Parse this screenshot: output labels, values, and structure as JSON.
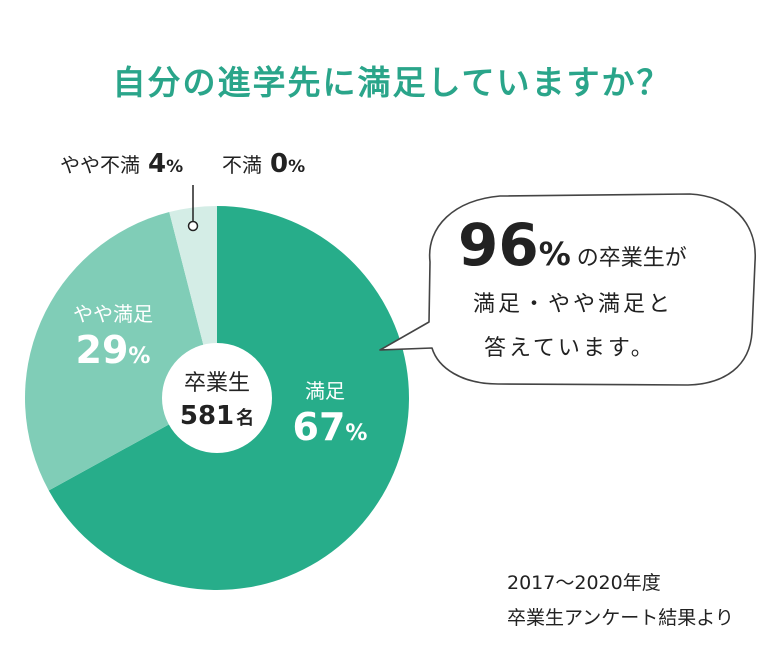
{
  "title": "自分の進学先に満足していますか？",
  "colors": {
    "title": "#2aa58a",
    "satisfied": "#27ad8a",
    "somewhat_satisfied": "#80cdb7",
    "somewhat_unsatisfied": "#d4ede6",
    "unsatisfied": "#ffffff",
    "text_dark": "#222222"
  },
  "chart_data": {
    "type": "pie",
    "title": "自分の進学先に満足していますか？",
    "slices": [
      {
        "label": "満足",
        "value": 67,
        "value_text": "67",
        "unit": "%"
      },
      {
        "label": "やや満足",
        "value": 29,
        "value_text": "29",
        "unit": "%"
      },
      {
        "label": "やや不満",
        "value": 4,
        "value_text": "4",
        "unit": "%"
      },
      {
        "label": "不満",
        "value": 0,
        "value_text": "0",
        "unit": "%"
      }
    ],
    "center": {
      "label": "卒業生",
      "count": "581",
      "unit": "名"
    }
  },
  "callout": {
    "big_number": "96",
    "big_unit": "%",
    "line1_rest": "の卒業生が",
    "line2": "満足・やや満足と",
    "line3": "答えています。"
  },
  "source": {
    "line1": "2017〜2020年度",
    "line2": "卒業生アンケート結果より"
  }
}
